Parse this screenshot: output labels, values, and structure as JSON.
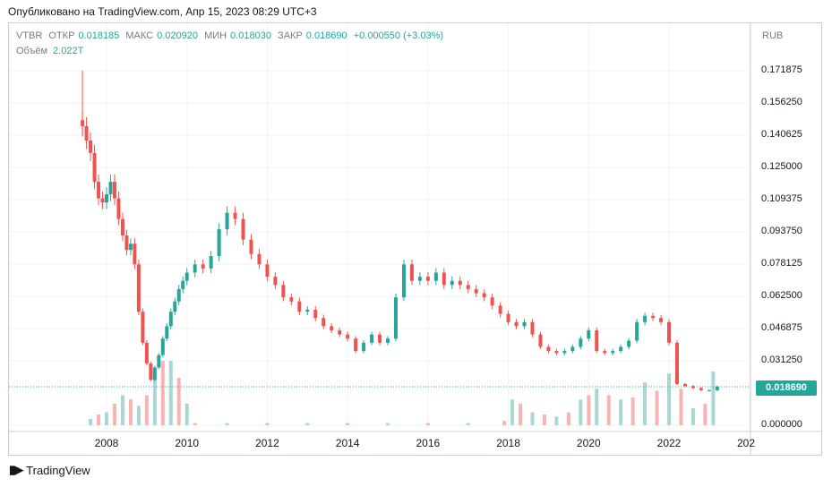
{
  "published": "Опубликовано на TradingView.com, Апр 15, 2023 08:29 UTC+3",
  "legend": {
    "symbol": "VTBR",
    "open_label": "ОТКР",
    "open": "0.018185",
    "high_label": "МАКС",
    "high": "0.020920",
    "low_label": "МИН",
    "low": "0.018030",
    "close_label": "ЗАКР",
    "close": "0.018690",
    "change": "+0.000550 (+3.03%)",
    "volume_label": "Объём",
    "volume": "2.022T"
  },
  "currency": "RUB",
  "last_price_label": "0.018690",
  "brand": "TradingView",
  "colors": {
    "up": "#26a69a",
    "down": "#ef5350",
    "vol_up": "#a7d8d3",
    "vol_down": "#f7b4b3",
    "grid": "#f0f3fa"
  },
  "chart_data": {
    "type": "candlestick",
    "y_ticks": [
      "0.171875",
      "0.156250",
      "0.140625",
      "0.125000",
      "0.109375",
      "0.093750",
      "0.078125",
      "0.062500",
      "0.046875",
      "0.031250",
      "0.000000"
    ],
    "x_ticks": [
      "2008",
      "2010",
      "2012",
      "2014",
      "2016",
      "2018",
      "2020",
      "2022",
      "202"
    ],
    "ylim": [
      0,
      0.18
    ],
    "last_close": 0.01869,
    "grid": true,
    "series": [
      {
        "t": 2007.4,
        "c": 0.145
      },
      {
        "t": 2007.5,
        "c": 0.138
      },
      {
        "t": 2007.6,
        "c": 0.132
      },
      {
        "t": 2007.7,
        "c": 0.118
      },
      {
        "t": 2007.8,
        "c": 0.11
      },
      {
        "t": 2007.9,
        "c": 0.108
      },
      {
        "t": 2008.0,
        "c": 0.112
      },
      {
        "t": 2008.1,
        "c": 0.118
      },
      {
        "t": 2008.2,
        "c": 0.11
      },
      {
        "t": 2008.3,
        "c": 0.1
      },
      {
        "t": 2008.4,
        "c": 0.092
      },
      {
        "t": 2008.5,
        "c": 0.085
      },
      {
        "t": 2008.6,
        "c": 0.088
      },
      {
        "t": 2008.7,
        "c": 0.078
      },
      {
        "t": 2008.8,
        "c": 0.055
      },
      {
        "t": 2008.9,
        "c": 0.04
      },
      {
        "t": 2009.0,
        "c": 0.03
      },
      {
        "t": 2009.1,
        "c": 0.022
      },
      {
        "t": 2009.2,
        "c": 0.028
      },
      {
        "t": 2009.3,
        "c": 0.034
      },
      {
        "t": 2009.4,
        "c": 0.042
      },
      {
        "t": 2009.5,
        "c": 0.048
      },
      {
        "t": 2009.6,
        "c": 0.055
      },
      {
        "t": 2009.7,
        "c": 0.06
      },
      {
        "t": 2009.8,
        "c": 0.066
      },
      {
        "t": 2009.9,
        "c": 0.07
      },
      {
        "t": 2010.0,
        "c": 0.074
      },
      {
        "t": 2010.2,
        "c": 0.078
      },
      {
        "t": 2010.4,
        "c": 0.076
      },
      {
        "t": 2010.6,
        "c": 0.082
      },
      {
        "t": 2010.8,
        "c": 0.095
      },
      {
        "t": 2011.0,
        "c": 0.103
      },
      {
        "t": 2011.2,
        "c": 0.1
      },
      {
        "t": 2011.4,
        "c": 0.09
      },
      {
        "t": 2011.6,
        "c": 0.083
      },
      {
        "t": 2011.8,
        "c": 0.078
      },
      {
        "t": 2012.0,
        "c": 0.072
      },
      {
        "t": 2012.2,
        "c": 0.068
      },
      {
        "t": 2012.4,
        "c": 0.062
      },
      {
        "t": 2012.6,
        "c": 0.06
      },
      {
        "t": 2012.8,
        "c": 0.055
      },
      {
        "t": 2013.0,
        "c": 0.056
      },
      {
        "t": 2013.2,
        "c": 0.052
      },
      {
        "t": 2013.4,
        "c": 0.048
      },
      {
        "t": 2013.6,
        "c": 0.046
      },
      {
        "t": 2013.8,
        "c": 0.044
      },
      {
        "t": 2014.0,
        "c": 0.042
      },
      {
        "t": 2014.2,
        "c": 0.036
      },
      {
        "t": 2014.4,
        "c": 0.04
      },
      {
        "t": 2014.6,
        "c": 0.044
      },
      {
        "t": 2014.8,
        "c": 0.04
      },
      {
        "t": 2015.0,
        "c": 0.042
      },
      {
        "t": 2015.2,
        "c": 0.062
      },
      {
        "t": 2015.4,
        "c": 0.078
      },
      {
        "t": 2015.6,
        "c": 0.07
      },
      {
        "t": 2015.8,
        "c": 0.072
      },
      {
        "t": 2016.0,
        "c": 0.07
      },
      {
        "t": 2016.2,
        "c": 0.074
      },
      {
        "t": 2016.4,
        "c": 0.068
      },
      {
        "t": 2016.6,
        "c": 0.07
      },
      {
        "t": 2016.8,
        "c": 0.068
      },
      {
        "t": 2017.0,
        "c": 0.066
      },
      {
        "t": 2017.2,
        "c": 0.064
      },
      {
        "t": 2017.4,
        "c": 0.062
      },
      {
        "t": 2017.6,
        "c": 0.058
      },
      {
        "t": 2017.8,
        "c": 0.054
      },
      {
        "t": 2018.0,
        "c": 0.05
      },
      {
        "t": 2018.2,
        "c": 0.048
      },
      {
        "t": 2018.4,
        "c": 0.05
      },
      {
        "t": 2018.6,
        "c": 0.044
      },
      {
        "t": 2018.8,
        "c": 0.038
      },
      {
        "t": 2019.0,
        "c": 0.036
      },
      {
        "t": 2019.2,
        "c": 0.035
      },
      {
        "t": 2019.4,
        "c": 0.036
      },
      {
        "t": 2019.6,
        "c": 0.038
      },
      {
        "t": 2019.8,
        "c": 0.042
      },
      {
        "t": 2020.0,
        "c": 0.046
      },
      {
        "t": 2020.2,
        "c": 0.036
      },
      {
        "t": 2020.4,
        "c": 0.035
      },
      {
        "t": 2020.6,
        "c": 0.036
      },
      {
        "t": 2020.8,
        "c": 0.038
      },
      {
        "t": 2021.0,
        "c": 0.041
      },
      {
        "t": 2021.2,
        "c": 0.05
      },
      {
        "t": 2021.4,
        "c": 0.053
      },
      {
        "t": 2021.6,
        "c": 0.052
      },
      {
        "t": 2021.8,
        "c": 0.05
      },
      {
        "t": 2022.0,
        "c": 0.04
      },
      {
        "t": 2022.2,
        "c": 0.02
      },
      {
        "t": 2022.4,
        "c": 0.019
      },
      {
        "t": 2022.6,
        "c": 0.018
      },
      {
        "t": 2022.8,
        "c": 0.017
      },
      {
        "t": 2023.0,
        "c": 0.017
      },
      {
        "t": 2023.2,
        "c": 0.0187
      }
    ],
    "volume": [
      {
        "t": 2007.6,
        "v": 0.03
      },
      {
        "t": 2007.8,
        "v": 0.05
      },
      {
        "t": 2008.0,
        "v": 0.06
      },
      {
        "t": 2008.2,
        "v": 0.1
      },
      {
        "t": 2008.4,
        "v": 0.14
      },
      {
        "t": 2008.6,
        "v": 0.12
      },
      {
        "t": 2008.8,
        "v": 0.09
      },
      {
        "t": 2009.0,
        "v": 0.14
      },
      {
        "t": 2009.2,
        "v": 0.26
      },
      {
        "t": 2009.4,
        "v": 0.3
      },
      {
        "t": 2009.6,
        "v": 0.3
      },
      {
        "t": 2009.8,
        "v": 0.22
      },
      {
        "t": 2010.0,
        "v": 0.1
      },
      {
        "t": 2010.2,
        "v": 0.01
      },
      {
        "t": 2011.0,
        "v": 0.01
      },
      {
        "t": 2012.0,
        "v": 0.01
      },
      {
        "t": 2013.0,
        "v": 0.01
      },
      {
        "t": 2014.0,
        "v": 0.01
      },
      {
        "t": 2015.0,
        "v": 0.01
      },
      {
        "t": 2016.0,
        "v": 0.01
      },
      {
        "t": 2017.0,
        "v": 0.01
      },
      {
        "t": 2017.9,
        "v": 0.02
      },
      {
        "t": 2018.1,
        "v": 0.12
      },
      {
        "t": 2018.3,
        "v": 0.1
      },
      {
        "t": 2018.6,
        "v": 0.06
      },
      {
        "t": 2018.9,
        "v": 0.05
      },
      {
        "t": 2019.2,
        "v": 0.04
      },
      {
        "t": 2019.5,
        "v": 0.06
      },
      {
        "t": 2019.8,
        "v": 0.12
      },
      {
        "t": 2020.0,
        "v": 0.14
      },
      {
        "t": 2020.2,
        "v": 0.17
      },
      {
        "t": 2020.5,
        "v": 0.14
      },
      {
        "t": 2020.8,
        "v": 0.12
      },
      {
        "t": 2021.1,
        "v": 0.13
      },
      {
        "t": 2021.4,
        "v": 0.2
      },
      {
        "t": 2021.7,
        "v": 0.16
      },
      {
        "t": 2022.0,
        "v": 0.24
      },
      {
        "t": 2022.3,
        "v": 0.17
      },
      {
        "t": 2022.6,
        "v": 0.08
      },
      {
        "t": 2022.9,
        "v": 0.1
      },
      {
        "t": 2023.1,
        "v": 0.25
      }
    ]
  }
}
